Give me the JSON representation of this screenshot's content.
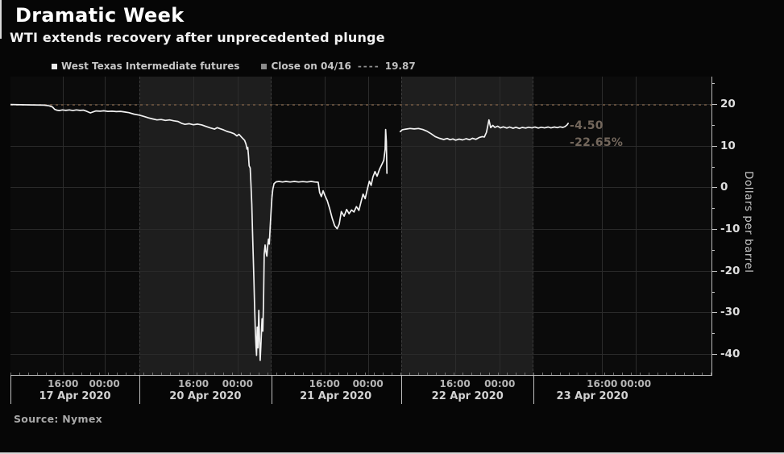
{
  "header": {
    "title": "Dramatic Week",
    "subtitle": "WTI extends recovery after unprecedented plunge"
  },
  "legend": {
    "series1": "West Texas Intermediate futures",
    "series2": "Close on 04/16",
    "dashes": "----",
    "series2_value": "19.87"
  },
  "annotations": {
    "change": "-4.50",
    "pct_change": "-22.65%"
  },
  "source": {
    "text": "Source: Nymex"
  },
  "colors": {
    "background": "#060606",
    "band": "#1e1e1e",
    "price_line": "#f2f2f2",
    "close_line": "#5f4b3a",
    "annotation": "#73675c",
    "grid": "#2a2a2a",
    "axis": "#b8b8b8"
  },
  "chart_data": {
    "type": "line",
    "title": "Dramatic Week",
    "subtitle": "WTI extends recovery after unprecedented plunge",
    "ylabel": "Dollars per barrel",
    "ylim": [
      -45.0,
      26.6
    ],
    "yticks": [
      20,
      10,
      0,
      -10,
      -20,
      -30,
      -40
    ],
    "yticks_minor": [
      25,
      15,
      5,
      -5,
      -15,
      -25,
      -35
    ],
    "grid": true,
    "legend_position": "top-left",
    "close_line": {
      "label": "Close on 04/16",
      "value": 19.87
    },
    "last_price": 15.37,
    "change": -4.5,
    "pct_change": -22.65,
    "x_axis": {
      "boundaries_pct": [
        0,
        18.4,
        37.2,
        55.7,
        74.6
      ],
      "day_sections": [
        {
          "date": "17 Apr 2020",
          "start_pct": 0,
          "end_pct": 18.4,
          "shaded": false,
          "label_pct": 9.2
        },
        {
          "date": "20 Apr 2020",
          "start_pct": 18.4,
          "end_pct": 37.2,
          "shaded": true,
          "label_pct": 27.8
        },
        {
          "date": "21 Apr 2020",
          "start_pct": 37.2,
          "end_pct": 55.7,
          "shaded": false,
          "label_pct": 46.4
        },
        {
          "date": "22 Apr 2020",
          "start_pct": 55.7,
          "end_pct": 74.6,
          "shaded": true,
          "label_pct": 65.2
        },
        {
          "date": "23 Apr 2020",
          "start_pct": 74.6,
          "end_pct": 100,
          "shaded": false,
          "label_pct": 83.0
        }
      ],
      "time_ticks": [
        {
          "label": "16:00",
          "pct": 7.5
        },
        {
          "label": "00:00",
          "pct": 13.4
        },
        {
          "label": "16:00",
          "pct": 26.1
        },
        {
          "label": "00:00",
          "pct": 32.4
        },
        {
          "label": "16:00",
          "pct": 44.8
        },
        {
          "label": "00:00",
          "pct": 51.0
        },
        {
          "label": "16:00",
          "pct": 63.4
        },
        {
          "label": "00:00",
          "pct": 69.8
        },
        {
          "label": "16:00",
          "pct": 84.4
        },
        {
          "label": "00:00",
          "pct": 89.2
        }
      ]
    },
    "series": [
      {
        "name": "West Texas Intermediate futures",
        "unit": "dollars per barrel",
        "segments": [
          [
            [
              0,
              19.9
            ],
            [
              1.5,
              19.85
            ],
            [
              3,
              19.8
            ],
            [
              4.8,
              19.75
            ],
            [
              5.5,
              19.6
            ],
            [
              6,
              19.3
            ],
            [
              6.3,
              18.75
            ],
            [
              6.6,
              18.55
            ],
            [
              7,
              18.45
            ],
            [
              7.4,
              18.6
            ],
            [
              7.9,
              18.5
            ],
            [
              8.4,
              18.6
            ],
            [
              8.9,
              18.45
            ],
            [
              9.4,
              18.6
            ],
            [
              9.9,
              18.5
            ],
            [
              10.4,
              18.55
            ],
            [
              10.9,
              18.25
            ],
            [
              11.4,
              17.9
            ],
            [
              11.8,
              18.15
            ],
            [
              12.2,
              18.35
            ],
            [
              12.8,
              18.3
            ],
            [
              13.3,
              18.4
            ],
            [
              13.9,
              18.25
            ],
            [
              14.5,
              18.3
            ],
            [
              15.1,
              18.2
            ],
            [
              15.7,
              18.25
            ],
            [
              16.3,
              18.1
            ],
            [
              16.9,
              17.95
            ],
            [
              17.6,
              17.6
            ],
            [
              18.4,
              17.35
            ],
            [
              19.1,
              17.0
            ],
            [
              19.7,
              16.7
            ],
            [
              20.3,
              16.45
            ],
            [
              20.9,
              16.2
            ],
            [
              21.5,
              16.3
            ],
            [
              22.1,
              16.1
            ],
            [
              22.7,
              16.2
            ],
            [
              23.3,
              16.0
            ],
            [
              23.9,
              15.85
            ],
            [
              24.4,
              15.4
            ],
            [
              24.9,
              15.15
            ],
            [
              25.5,
              15.3
            ],
            [
              26.1,
              15.05
            ],
            [
              26.7,
              15.2
            ],
            [
              27.3,
              15.0
            ],
            [
              27.9,
              14.65
            ],
            [
              28.5,
              14.3
            ],
            [
              29.1,
              14.0
            ],
            [
              29.5,
              14.35
            ],
            [
              29.9,
              14.1
            ],
            [
              30.4,
              13.8
            ],
            [
              30.9,
              13.45
            ],
            [
              31.4,
              13.2
            ],
            [
              31.9,
              12.9
            ],
            [
              32.3,
              12.35
            ],
            [
              32.6,
              12.75
            ],
            [
              33.0,
              12.0
            ],
            [
              33.4,
              11.3
            ],
            [
              33.6,
              10.4
            ],
            [
              33.75,
              9.2
            ],
            [
              33.85,
              9.6
            ],
            [
              33.95,
              7.6
            ],
            [
              34.05,
              5.2
            ],
            [
              34.2,
              4.7
            ],
            [
              34.3,
              1.0
            ],
            [
              34.42,
              -4
            ],
            [
              34.52,
              -10
            ],
            [
              34.62,
              -16
            ],
            [
              34.72,
              -22
            ],
            [
              34.82,
              -28
            ],
            [
              34.92,
              -34
            ],
            [
              35.02,
              -38
            ],
            [
              35.1,
              -40.3
            ],
            [
              35.2,
              -33.5
            ],
            [
              35.3,
              -38.5
            ],
            [
              35.42,
              -29.5
            ],
            [
              35.52,
              -36
            ],
            [
              35.62,
              -41.5
            ],
            [
              35.75,
              -37
            ],
            [
              35.88,
              -31.5
            ],
            [
              36.0,
              -34.5
            ],
            [
              36.1,
              -27
            ],
            [
              36.2,
              -16
            ],
            [
              36.32,
              -13.8
            ],
            [
              36.45,
              -15.5
            ],
            [
              36.58,
              -16.5
            ],
            [
              36.7,
              -13.9
            ],
            [
              36.8,
              -12.4
            ],
            [
              36.92,
              -13.6
            ],
            [
              37.05,
              -9.5
            ],
            [
              37.18,
              -5.5
            ],
            [
              37.3,
              -2.4
            ],
            [
              37.42,
              -0.4
            ],
            [
              37.6,
              0.9
            ],
            [
              37.9,
              1.35
            ],
            [
              38.3,
              1.45
            ],
            [
              38.8,
              1.3
            ],
            [
              39.3,
              1.45
            ],
            [
              39.9,
              1.3
            ],
            [
              40.5,
              1.45
            ],
            [
              41.1,
              1.3
            ],
            [
              41.7,
              1.4
            ],
            [
              42.3,
              1.3
            ],
            [
              42.9,
              1.45
            ],
            [
              43.4,
              1.3
            ],
            [
              43.9,
              1.25
            ],
            [
              44.1,
              -1.2
            ],
            [
              44.35,
              -2.2
            ],
            [
              44.6,
              -0.8
            ],
            [
              44.85,
              -1.9
            ],
            [
              45.2,
              -3.2
            ],
            [
              45.55,
              -5.2
            ],
            [
              45.9,
              -7.4
            ],
            [
              46.25,
              -9.2
            ],
            [
              46.6,
              -9.9
            ],
            [
              46.9,
              -8.8
            ],
            [
              47.2,
              -5.8
            ],
            [
              47.6,
              -6.9
            ],
            [
              47.95,
              -5.3
            ],
            [
              48.3,
              -6.3
            ],
            [
              48.65,
              -5.4
            ],
            [
              49.0,
              -5.9
            ],
            [
              49.35,
              -4.6
            ],
            [
              49.7,
              -5.5
            ],
            [
              50.05,
              -3.2
            ],
            [
              50.3,
              -1.6
            ],
            [
              50.6,
              -2.7
            ],
            [
              50.9,
              -0.5
            ],
            [
              51.2,
              1.5
            ],
            [
              51.45,
              0.5
            ],
            [
              51.7,
              2.5
            ],
            [
              52.0,
              3.8
            ],
            [
              52.3,
              2.7
            ],
            [
              52.65,
              4.4
            ],
            [
              53.0,
              5.6
            ],
            [
              53.25,
              6.5
            ],
            [
              53.45,
              9.2
            ],
            [
              53.52,
              13.9
            ],
            [
              53.62,
              11.0
            ],
            [
              53.7,
              3.4
            ]
          ],
          [
            [
              55.6,
              13.4
            ],
            [
              55.9,
              13.85
            ],
            [
              56.4,
              14.0
            ],
            [
              57.0,
              14.15
            ],
            [
              57.6,
              14.05
            ],
            [
              58.2,
              14.15
            ],
            [
              58.8,
              13.9
            ],
            [
              59.4,
              13.5
            ],
            [
              60.0,
              12.9
            ],
            [
              60.6,
              12.2
            ],
            [
              61.2,
              11.8
            ],
            [
              61.8,
              11.5
            ],
            [
              62.3,
              11.75
            ],
            [
              62.7,
              11.45
            ],
            [
              63.1,
              11.65
            ],
            [
              63.5,
              11.35
            ],
            [
              64.0,
              11.6
            ],
            [
              64.5,
              11.4
            ],
            [
              65.0,
              11.7
            ],
            [
              65.5,
              11.45
            ],
            [
              65.9,
              11.8
            ],
            [
              66.4,
              11.55
            ],
            [
              66.9,
              12.0
            ],
            [
              67.3,
              12.2
            ],
            [
              67.6,
              12.1
            ],
            [
              67.9,
              13.2
            ],
            [
              68.1,
              14.9
            ],
            [
              68.25,
              16.2
            ],
            [
              68.5,
              14.35
            ],
            [
              68.8,
              14.9
            ],
            [
              69.1,
              14.4
            ],
            [
              69.5,
              14.7
            ],
            [
              69.9,
              14.3
            ],
            [
              70.3,
              14.55
            ],
            [
              70.8,
              14.25
            ],
            [
              71.2,
              14.5
            ],
            [
              71.7,
              14.2
            ],
            [
              72.1,
              14.45
            ],
            [
              72.6,
              14.15
            ],
            [
              73.0,
              14.4
            ],
            [
              73.5,
              14.25
            ],
            [
              73.9,
              14.45
            ],
            [
              74.4,
              14.3
            ],
            [
              74.8,
              14.5
            ],
            [
              75.3,
              14.25
            ],
            [
              75.7,
              14.45
            ],
            [
              76.2,
              14.3
            ],
            [
              76.7,
              14.5
            ],
            [
              77.1,
              14.3
            ],
            [
              77.6,
              14.5
            ],
            [
              78.0,
              14.35
            ],
            [
              78.4,
              14.55
            ],
            [
              78.8,
              14.4
            ],
            [
              79.1,
              14.6
            ],
            [
              79.4,
              15.0
            ],
            [
              79.55,
              15.37
            ]
          ]
        ]
      }
    ]
  }
}
